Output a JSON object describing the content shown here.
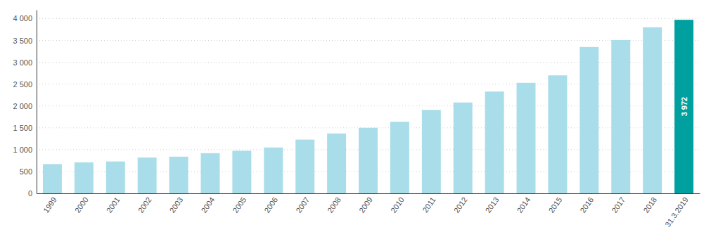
{
  "chart_data": {
    "type": "bar",
    "categories": [
      "1999",
      "2000",
      "2001",
      "2002",
      "2003",
      "2004",
      "2005",
      "2006",
      "2007",
      "2008",
      "2009",
      "2010",
      "2011",
      "2012",
      "2013",
      "2014",
      "2015",
      "2016",
      "2017",
      "2018",
      "31.3.2019"
    ],
    "values": [
      670,
      710,
      730,
      820,
      840,
      920,
      975,
      1050,
      1230,
      1370,
      1500,
      1640,
      1910,
      2080,
      2330,
      2530,
      2700,
      3350,
      3510,
      3800,
      3972
    ],
    "value_labels": [
      null,
      null,
      null,
      null,
      null,
      null,
      null,
      null,
      null,
      null,
      null,
      null,
      null,
      null,
      null,
      null,
      null,
      null,
      null,
      null,
      "3 972"
    ],
    "colors": [
      "#a8dde9",
      "#a8dde9",
      "#a8dde9",
      "#a8dde9",
      "#a8dde9",
      "#a8dde9",
      "#a8dde9",
      "#a8dde9",
      "#a8dde9",
      "#a8dde9",
      "#a8dde9",
      "#a8dde9",
      "#a8dde9",
      "#a8dde9",
      "#a8dde9",
      "#a8dde9",
      "#a8dde9",
      "#a8dde9",
      "#a8dde9",
      "#a8dde9",
      "#00a0a0"
    ],
    "ylim": [
      0,
      4200
    ],
    "yticks": [
      0,
      500,
      {
        "value": 1000,
        "label": "1 000"
      },
      {
        "value": 1500,
        "label": "1 500"
      },
      {
        "value": 2000,
        "label": "2 000"
      },
      {
        "value": 2500,
        "label": "2 500"
      },
      {
        "value": 3000,
        "label": "3 000"
      },
      {
        "value": 3500,
        "label": "3 500"
      },
      {
        "value": 4000,
        "label": "4 000"
      }
    ],
    "grid": true
  }
}
